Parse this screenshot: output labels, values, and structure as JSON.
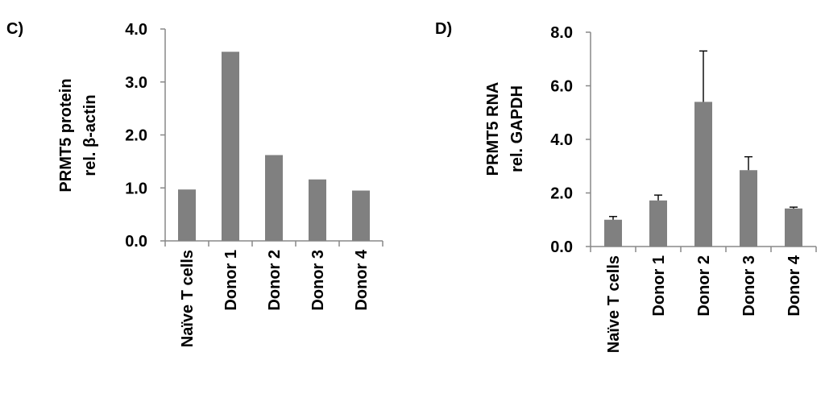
{
  "chart_data": [
    {
      "panel_label": "C)",
      "type": "bar",
      "categories": [
        "Naïve T cells",
        "Donor 1",
        "Donor 2",
        "Donor 3",
        "Donor 4"
      ],
      "values": [
        0.97,
        3.57,
        1.62,
        1.16,
        0.95
      ],
      "ylabel_lines": [
        "PRMT5 protein",
        "rel. β-actin"
      ],
      "ylim": [
        0,
        4.0
      ],
      "yticks": [
        "0.0",
        "1.0",
        "2.0",
        "3.0",
        "4.0"
      ],
      "error_bars": false,
      "bar_color": "#808080",
      "grid": false
    },
    {
      "panel_label": "D)",
      "type": "bar",
      "categories": [
        "Naïve T cells",
        "Donor 1",
        "Donor 2",
        "Donor 3",
        "Donor 4"
      ],
      "values": [
        1.0,
        1.72,
        5.4,
        2.85,
        1.42
      ],
      "errors": [
        0.12,
        0.2,
        1.9,
        0.5,
        0.05
      ],
      "ylabel_lines": [
        "PRMT5 RNA",
        "rel. GAPDH"
      ],
      "ylim": [
        0,
        8.0
      ],
      "yticks": [
        "0.0",
        "2.0",
        "4.0",
        "6.0",
        "8.0"
      ],
      "error_bars": true,
      "bar_color": "#808080",
      "grid": false
    }
  ]
}
